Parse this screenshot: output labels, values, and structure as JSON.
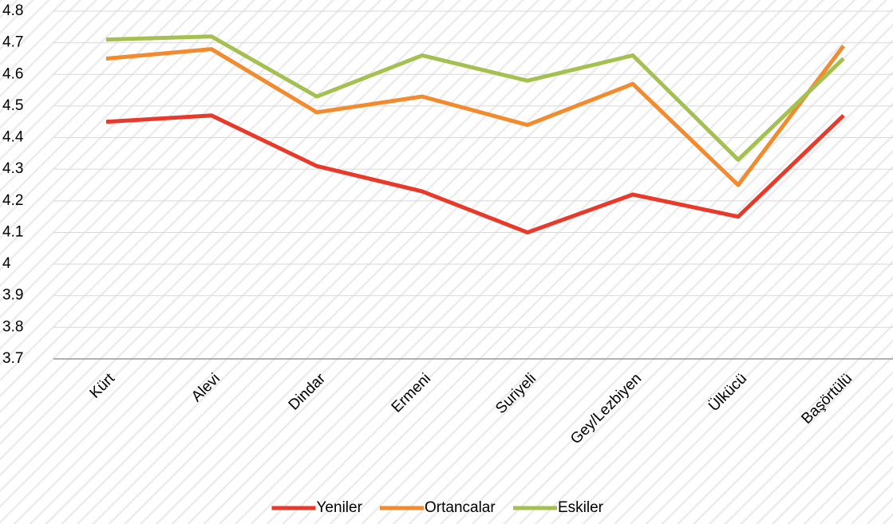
{
  "chart_data": {
    "type": "line",
    "categories": [
      "Kürt",
      "Alevi",
      "Dindar",
      "Ermeni",
      "Suriyeli",
      "Gey/Lezbiyen",
      "Ülkücü",
      "Başörtülü"
    ],
    "series": [
      {
        "name": "Yeniler",
        "color": "#e8392a",
        "values": [
          4.45,
          4.47,
          4.31,
          4.23,
          4.1,
          4.22,
          4.15,
          4.47
        ]
      },
      {
        "name": "Ortancalar",
        "color": "#f28a2e",
        "values": [
          4.65,
          4.68,
          4.48,
          4.53,
          4.44,
          4.57,
          4.25,
          4.69
        ]
      },
      {
        "name": "Eskiler",
        "color": "#a5c050",
        "values": [
          4.71,
          4.72,
          4.53,
          4.66,
          4.58,
          4.66,
          4.33,
          4.65
        ]
      }
    ],
    "ylim": [
      3.7,
      4.8
    ],
    "yticks": [
      3.7,
      3.8,
      3.9,
      4,
      4.1,
      4.2,
      4.3,
      4.4,
      4.5,
      4.6,
      4.7,
      4.8
    ],
    "grid": true,
    "legend": "bottom"
  }
}
